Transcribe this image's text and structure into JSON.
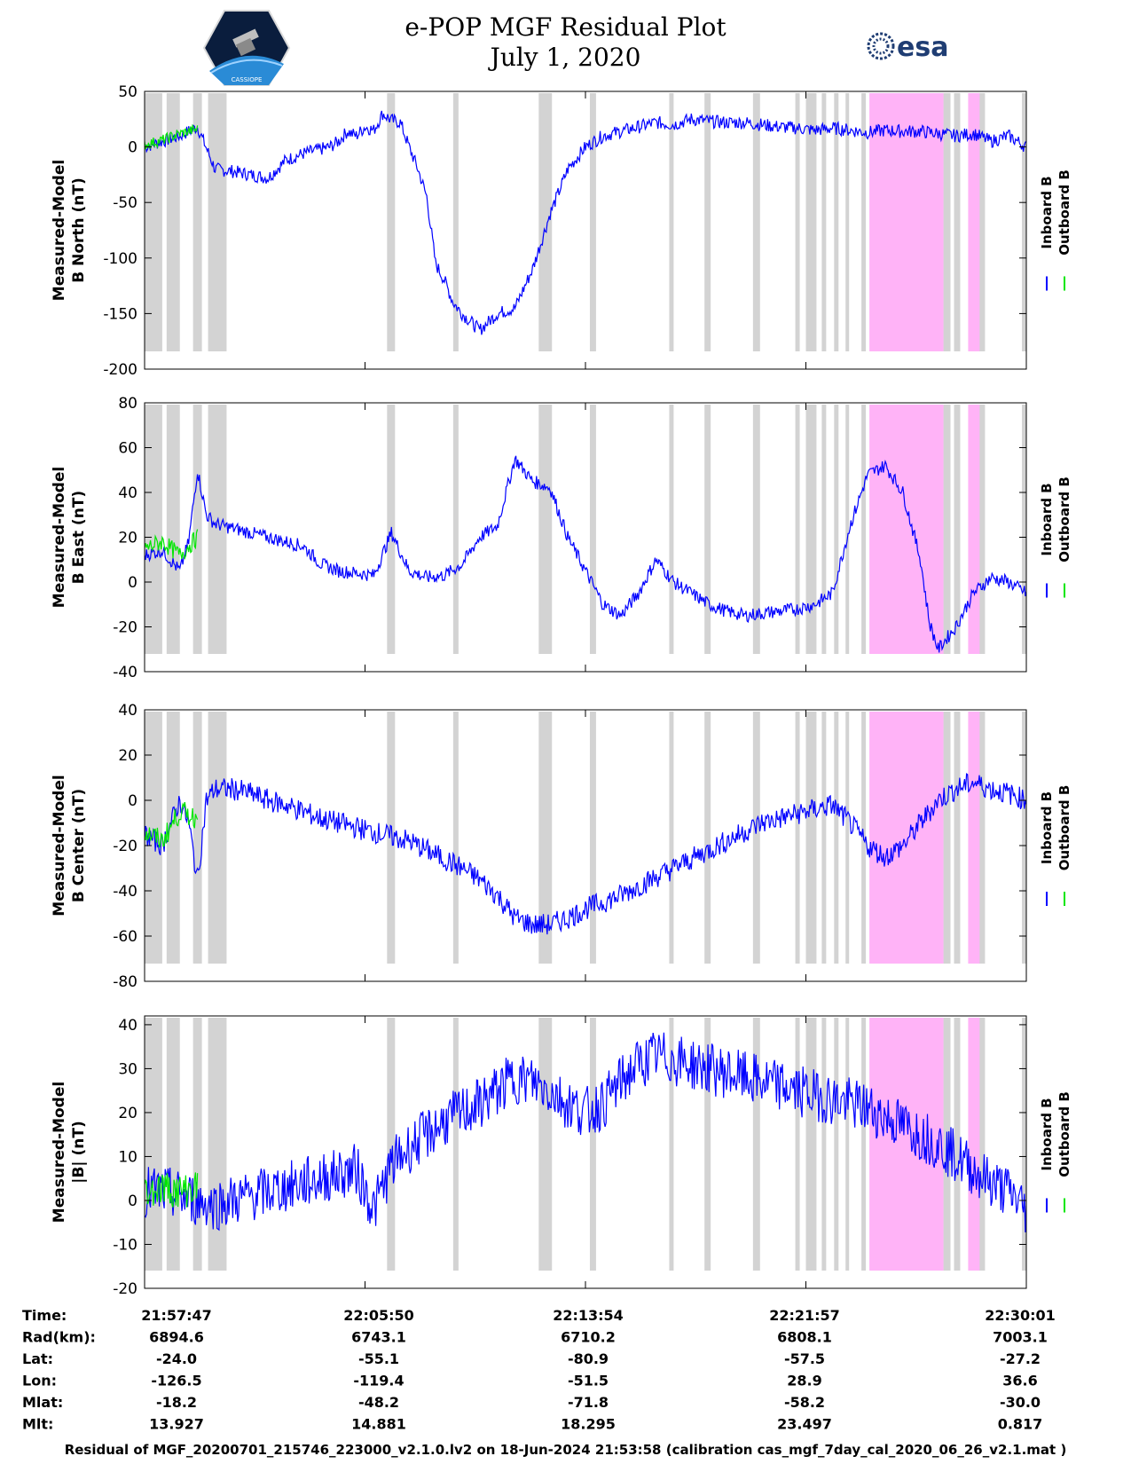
{
  "title": {
    "line1": "e-POP MGF Residual Plot",
    "line2": "July 1, 2020"
  },
  "logos": {
    "left": "CASSIOPE",
    "right": "esa"
  },
  "colors": {
    "inboard": "#0000ff",
    "outboard": "#00e600",
    "gap": "#d3d3d3",
    "highlight": "#ffb3f7"
  },
  "chart_data": [
    {
      "type": "line",
      "ylabel": [
        "Measured-Model",
        "B North (nT)"
      ],
      "ylim": [
        -200,
        50
      ],
      "yticks": [
        50,
        0,
        -50,
        -100,
        -150,
        -200
      ],
      "legend": [
        "Inboard B",
        "Outboard B"
      ],
      "series": [
        {
          "name": "Inboard B",
          "t": [
            0,
            2,
            4,
            6,
            8,
            10,
            12,
            14,
            16,
            18,
            20,
            21,
            22,
            23,
            24,
            25,
            26,
            27,
            28,
            29,
            30,
            31,
            32,
            33,
            34,
            35,
            36,
            38,
            40,
            42,
            44,
            46,
            48,
            50,
            52,
            54,
            56,
            58,
            60,
            62,
            64,
            66,
            68,
            70,
            72,
            74,
            76,
            78,
            80,
            82,
            84,
            86,
            88,
            90,
            92,
            94,
            96,
            98,
            100
          ],
          "v": [
            0,
            5,
            10,
            18,
            -20,
            -22,
            -25,
            -28,
            -12,
            -6,
            -2,
            0,
            5,
            14,
            10,
            18,
            15,
            30,
            24,
            22,
            0,
            -20,
            -45,
            -105,
            -120,
            -140,
            -150,
            -165,
            -150,
            -145,
            -110,
            -60,
            -20,
            0,
            10,
            14,
            18,
            22,
            20,
            25,
            23,
            22,
            22,
            20,
            18,
            17,
            15,
            17,
            15,
            13,
            15,
            14,
            14,
            12,
            10,
            12,
            5,
            10,
            0
          ],
          "noise": 6
        },
        {
          "name": "Outboard B",
          "t": [
            0,
            2,
            4,
            6
          ],
          "v": [
            2,
            6,
            12,
            16
          ],
          "noise": 5
        }
      ]
    },
    {
      "type": "line",
      "ylabel": [
        "Measured-Model",
        "B East (nT)"
      ],
      "ylim": [
        -40,
        80
      ],
      "yticks": [
        80,
        60,
        40,
        20,
        0,
        -20,
        -40
      ],
      "legend": [
        "Inboard B",
        "Outboard B"
      ],
      "series": [
        {
          "name": "Inboard B",
          "t": [
            0,
            2,
            4,
            5,
            6,
            7,
            8,
            10,
            12,
            14,
            16,
            18,
            20,
            22,
            24,
            26,
            28,
            30,
            32,
            34,
            36,
            38,
            40,
            42,
            44,
            46,
            48,
            50,
            52,
            54,
            56,
            58,
            60,
            62,
            64,
            66,
            68,
            70,
            72,
            74,
            76,
            78,
            80,
            82,
            84,
            86,
            88,
            89,
            90,
            92,
            94,
            96,
            98,
            100
          ],
          "v": [
            12,
            14,
            5,
            18,
            50,
            30,
            26,
            24,
            22,
            20,
            18,
            16,
            8,
            5,
            4,
            3,
            22,
            5,
            2,
            3,
            8,
            20,
            25,
            55,
            45,
            42,
            20,
            5,
            -10,
            -15,
            -5,
            10,
            0,
            -5,
            -10,
            -13,
            -15,
            -14,
            -13,
            -12,
            -10,
            -5,
            25,
            48,
            52,
            40,
            10,
            -18,
            -30,
            -20,
            -5,
            2,
            0,
            -5
          ],
          "noise": 3
        },
        {
          "name": "Outboard B",
          "t": [
            0,
            2,
            4,
            6
          ],
          "v": [
            15,
            18,
            12,
            20
          ],
          "noise": 4
        }
      ]
    },
    {
      "type": "line",
      "ylabel": [
        "Measured-Model",
        "B Center (nT)"
      ],
      "ylim": [
        -80,
        40
      ],
      "yticks": [
        40,
        20,
        0,
        -20,
        -40,
        -60,
        -80
      ],
      "legend": [
        "Inboard B",
        "Outboard B"
      ],
      "series": [
        {
          "name": "Inboard B",
          "t": [
            0,
            2,
            4,
            5,
            6,
            7,
            8,
            10,
            12,
            14,
            16,
            18,
            20,
            22,
            24,
            26,
            28,
            30,
            32,
            34,
            36,
            38,
            40,
            42,
            44,
            46,
            48,
            50,
            52,
            54,
            56,
            58,
            60,
            62,
            64,
            66,
            68,
            70,
            72,
            74,
            76,
            78,
            80,
            82,
            84,
            86,
            88,
            90,
            92,
            94,
            96,
            98,
            100
          ],
          "v": [
            -15,
            -20,
            0,
            -10,
            -35,
            0,
            5,
            5,
            3,
            0,
            -2,
            -5,
            -8,
            -10,
            -12,
            -14,
            -16,
            -18,
            -22,
            -26,
            -30,
            -35,
            -42,
            -52,
            -55,
            -55,
            -52,
            -48,
            -45,
            -42,
            -38,
            -34,
            -30,
            -26,
            -22,
            -18,
            -14,
            -10,
            -8,
            -6,
            -4,
            -2,
            -10,
            -20,
            -25,
            -20,
            -10,
            0,
            5,
            8,
            5,
            3,
            0
          ],
          "noise": 5
        },
        {
          "name": "Outboard B",
          "t": [
            0,
            2,
            4,
            6
          ],
          "v": [
            -14,
            -18,
            -5,
            -8
          ],
          "noise": 5
        }
      ]
    },
    {
      "type": "line",
      "ylabel": [
        "Measured-Model",
        "|B| (nT)"
      ],
      "ylim": [
        -20,
        42
      ],
      "yticks": [
        40,
        30,
        20,
        10,
        0,
        -10,
        -20
      ],
      "legend": [
        "Inboard B",
        "Outboard B"
      ],
      "series": [
        {
          "name": "Inboard B",
          "t": [
            0,
            2,
            4,
            6,
            8,
            10,
            12,
            14,
            16,
            18,
            20,
            22,
            24,
            26,
            28,
            30,
            32,
            34,
            36,
            38,
            40,
            42,
            44,
            46,
            48,
            50,
            52,
            54,
            56,
            58,
            60,
            62,
            64,
            66,
            68,
            70,
            72,
            74,
            76,
            78,
            80,
            82,
            84,
            86,
            88,
            90,
            92,
            94,
            96,
            98,
            100
          ],
          "v": [
            2,
            2,
            1,
            0,
            -1,
            0,
            1,
            2,
            3,
            4,
            5,
            6,
            7,
            -2,
            8,
            12,
            15,
            18,
            20,
            22,
            25,
            28,
            27,
            25,
            22,
            20,
            22,
            27,
            31,
            33,
            32,
            31,
            30,
            29,
            28,
            27,
            26,
            25,
            24,
            23,
            22,
            21,
            19,
            17,
            15,
            13,
            10,
            7,
            4,
            2,
            -2
          ],
          "noise": 6
        },
        {
          "name": "Outboard B",
          "t": [
            0,
            2,
            4,
            6
          ],
          "v": [
            2,
            3,
            2,
            3
          ],
          "noise": 4
        }
      ]
    }
  ],
  "shading": {
    "gray_bands": [
      [
        0,
        2
      ],
      [
        2.5,
        4
      ],
      [
        5.5,
        6.5
      ],
      [
        7.2,
        9.3
      ],
      [
        27.5,
        28.4
      ],
      [
        35,
        35.6
      ],
      [
        44.7,
        46.2
      ],
      [
        50.5,
        51.2
      ],
      [
        59.5,
        60
      ],
      [
        63.5,
        64.2
      ],
      [
        69,
        69.8
      ],
      [
        75,
        76.2
      ],
      [
        79.5,
        79.9
      ],
      [
        85,
        85.4
      ],
      [
        94.5,
        95.3
      ],
      [
        99.5,
        100
      ],
      [
        101.5,
        102
      ],
      [
        103,
        103.5
      ]
    ],
    "pink_bands": [
      [
        82.2,
        90.6
      ],
      [
        93.4,
        94.7
      ]
    ],
    "extra_gray": [
      [
        73.8,
        74.3
      ],
      [
        76.8,
        77.3
      ],
      [
        78.2,
        78.7
      ],
      [
        81.3,
        81.8
      ],
      [
        90.6,
        91.4
      ],
      [
        91.8,
        92.5
      ],
      [
        94.7,
        95.3
      ]
    ]
  },
  "footer": {
    "row_labels": [
      "Time:",
      "Rad(km):",
      "Lat:",
      "Lon:",
      "Mlat:",
      "Mlt:"
    ],
    "columns": [
      [
        "21:57:47",
        "6894.6",
        "-24.0",
        "-126.5",
        "-18.2",
        "13.927"
      ],
      [
        "22:05:50",
        "6743.1",
        "-55.1",
        "-119.4",
        "-48.2",
        "14.881"
      ],
      [
        "22:13:54",
        "6710.2",
        "-80.9",
        "-51.5",
        "-71.8",
        "18.295"
      ],
      [
        "22:21:57",
        "6808.1",
        "-57.5",
        "28.9",
        "-58.2",
        "23.497"
      ],
      [
        "22:30:01",
        "7003.1",
        "-27.2",
        "36.6",
        "-30.0",
        "0.817"
      ]
    ],
    "caption": "Residual of MGF_20200701_215746_223000_v2.1.0.lv2 on 18-Jun-2024 21:53:58 (calibration cas_mgf_7day_cal_2020_06_26_v2.1.mat )"
  }
}
